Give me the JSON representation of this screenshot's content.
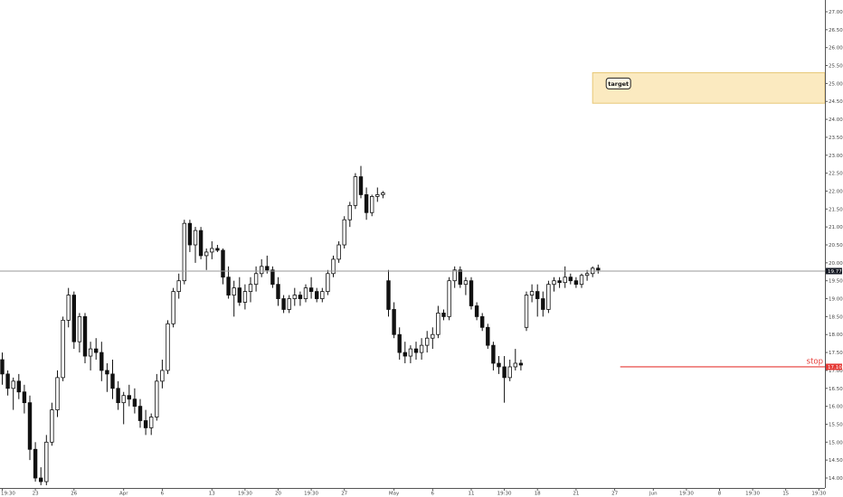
{
  "chart_data": {
    "type": "candlestick",
    "title": "",
    "xlabel": "",
    "ylabel": "",
    "grid": false,
    "ylim": [
      13.75,
      27.25
    ],
    "y_ticks": [
      14.0,
      14.5,
      15.0,
      15.5,
      16.0,
      16.5,
      17.0,
      17.5,
      18.0,
      18.5,
      19.0,
      19.5,
      20.0,
      20.5,
      21.0,
      21.5,
      22.0,
      22.5,
      23.0,
      23.5,
      24.0,
      24.5,
      25.0,
      25.5,
      26.0,
      26.5,
      27.0
    ],
    "x_ticks": [
      {
        "label": "19:30",
        "bar": 0
      },
      {
        "label": "23",
        "bar": 6
      },
      {
        "label": "26",
        "bar": 13
      },
      {
        "label": "Apr",
        "bar": 22
      },
      {
        "label": "6",
        "bar": 29
      },
      {
        "label": "13",
        "bar": 38
      },
      {
        "label": "19:30",
        "bar": 44
      },
      {
        "label": "20",
        "bar": 50
      },
      {
        "label": "19:30",
        "bar": 56
      },
      {
        "label": "27",
        "bar": 62
      },
      {
        "label": "May",
        "bar": 71
      },
      {
        "label": "6",
        "bar": 78
      },
      {
        "label": "11",
        "bar": 85
      },
      {
        "label": "19:30",
        "bar": 91
      },
      {
        "label": "18",
        "bar": 97
      },
      {
        "label": "21",
        "bar": 104
      },
      {
        "label": "27",
        "bar": 111
      },
      {
        "label": "Jun",
        "bar": 118
      },
      {
        "label": "19:30",
        "bar": 124
      },
      {
        "label": "8",
        "bar": 130
      },
      {
        "label": "19:30",
        "bar": 136
      },
      {
        "label": "15",
        "bar": 142
      },
      {
        "label": "19:30",
        "bar": 148
      },
      {
        "label": "19:30",
        "bar": 154
      }
    ],
    "price_line": {
      "value": 19.77,
      "label": "19.77"
    },
    "stop": {
      "value": 17.1,
      "label": "17.10",
      "text": "stop"
    },
    "target_zone": {
      "from_bar": 107,
      "to": 25.3,
      "bottom": 24.45,
      "text": "target"
    },
    "bar_count": 109,
    "candles": [
      [
        17.3,
        17.5,
        16.6,
        16.9
      ],
      [
        16.9,
        17.0,
        16.3,
        16.5
      ],
      [
        16.5,
        16.8,
        15.9,
        16.7
      ],
      [
        16.7,
        16.9,
        16.2,
        16.4
      ],
      [
        16.4,
        16.6,
        15.8,
        16.1
      ],
      [
        16.1,
        16.3,
        14.5,
        14.8
      ],
      [
        14.8,
        15.0,
        13.9,
        14.0
      ],
      [
        14.0,
        14.3,
        13.8,
        13.9
      ],
      [
        13.9,
        15.2,
        13.8,
        15.0
      ],
      [
        15.0,
        16.1,
        14.9,
        15.9
      ],
      [
        15.9,
        17.0,
        15.7,
        16.8
      ],
      [
        16.8,
        18.5,
        16.7,
        18.4
      ],
      [
        18.4,
        19.3,
        18.2,
        19.1
      ],
      [
        19.1,
        19.2,
        17.6,
        17.8
      ],
      [
        17.8,
        18.6,
        17.5,
        18.5
      ],
      [
        18.5,
        18.6,
        17.2,
        17.4
      ],
      [
        17.4,
        17.8,
        17.0,
        17.6
      ],
      [
        17.6,
        17.9,
        17.3,
        17.5
      ],
      [
        17.5,
        17.8,
        16.7,
        17.0
      ],
      [
        17.0,
        17.2,
        16.4,
        16.9
      ],
      [
        16.9,
        17.3,
        16.2,
        16.5
      ],
      [
        16.5,
        16.7,
        15.9,
        16.1
      ],
      [
        16.1,
        16.4,
        15.5,
        16.3
      ],
      [
        16.3,
        16.6,
        16.0,
        16.2
      ],
      [
        16.2,
        16.5,
        15.8,
        16.0
      ],
      [
        16.0,
        16.2,
        15.4,
        15.6
      ],
      [
        15.6,
        15.9,
        15.2,
        15.4
      ],
      [
        15.4,
        15.8,
        15.2,
        15.7
      ],
      [
        15.7,
        16.9,
        15.6,
        16.7
      ],
      [
        16.7,
        17.3,
        16.5,
        17.0
      ],
      [
        17.0,
        18.4,
        16.9,
        18.3
      ],
      [
        18.3,
        19.3,
        18.2,
        19.2
      ],
      [
        19.2,
        19.7,
        19.0,
        19.5
      ],
      [
        19.5,
        21.2,
        19.4,
        21.1
      ],
      [
        21.1,
        21.2,
        20.3,
        20.5
      ],
      [
        20.5,
        21.0,
        20.0,
        20.9
      ],
      [
        20.9,
        21.0,
        20.1,
        20.2
      ],
      [
        20.2,
        20.4,
        19.8,
        20.3
      ],
      [
        20.3,
        20.6,
        20.1,
        20.4
      ],
      [
        20.4,
        20.5,
        20.3,
        20.35
      ],
      [
        20.35,
        20.4,
        19.4,
        19.6
      ],
      [
        19.6,
        19.9,
        19.0,
        19.1
      ],
      [
        19.1,
        19.5,
        18.5,
        19.3
      ],
      [
        19.3,
        19.6,
        18.8,
        18.9
      ],
      [
        18.9,
        19.4,
        18.7,
        19.2
      ],
      [
        19.2,
        19.6,
        18.9,
        19.4
      ],
      [
        19.4,
        19.9,
        19.2,
        19.7
      ],
      [
        19.7,
        20.1,
        19.6,
        19.9
      ],
      [
        19.9,
        20.2,
        19.7,
        19.8
      ],
      [
        19.8,
        19.9,
        19.3,
        19.4
      ],
      [
        19.4,
        19.6,
        18.8,
        19.0
      ],
      [
        19.0,
        19.1,
        18.6,
        18.7
      ],
      [
        18.7,
        19.1,
        18.6,
        19.0
      ],
      [
        19.0,
        19.3,
        18.8,
        19.1
      ],
      [
        19.1,
        19.2,
        18.8,
        19.0
      ],
      [
        19.0,
        19.4,
        18.9,
        19.3
      ],
      [
        19.3,
        19.6,
        19.0,
        19.2
      ],
      [
        19.2,
        19.3,
        18.9,
        19.0
      ],
      [
        19.0,
        19.3,
        18.9,
        19.2
      ],
      [
        19.2,
        19.8,
        19.1,
        19.7
      ],
      [
        19.7,
        20.2,
        19.6,
        20.1
      ],
      [
        20.1,
        20.6,
        20.0,
        20.5
      ],
      [
        20.5,
        21.3,
        20.4,
        21.2
      ],
      [
        21.2,
        21.7,
        21.0,
        21.6
      ],
      [
        21.6,
        22.5,
        21.5,
        22.4
      ],
      [
        22.4,
        22.7,
        21.8,
        21.9
      ],
      [
        21.9,
        22.1,
        21.2,
        21.4
      ],
      [
        21.4,
        21.9,
        21.3,
        21.85
      ],
      [
        21.85,
        22.1,
        21.7,
        21.9
      ],
      [
        21.9,
        22.0,
        21.8,
        21.95
      ],
      [
        19.5,
        19.8,
        18.5,
        18.7
      ],
      [
        18.7,
        18.9,
        17.9,
        18.0
      ],
      [
        18.0,
        18.2,
        17.3,
        17.5
      ],
      [
        17.5,
        17.8,
        17.2,
        17.4
      ],
      [
        17.4,
        17.7,
        17.2,
        17.6
      ],
      [
        17.6,
        17.8,
        17.3,
        17.5
      ],
      [
        17.5,
        17.9,
        17.3,
        17.7
      ],
      [
        17.7,
        18.1,
        17.5,
        17.9
      ],
      [
        17.9,
        18.2,
        17.6,
        18.0
      ],
      [
        18.0,
        18.8,
        17.9,
        18.6
      ],
      [
        18.6,
        18.7,
        18.4,
        18.5
      ],
      [
        18.5,
        19.6,
        18.4,
        19.5
      ],
      [
        19.5,
        19.9,
        19.3,
        19.8
      ],
      [
        19.8,
        19.9,
        19.3,
        19.4
      ],
      [
        19.4,
        19.6,
        19.1,
        19.5
      ],
      [
        19.5,
        19.6,
        18.7,
        18.8
      ],
      [
        18.8,
        18.9,
        18.4,
        18.5
      ],
      [
        18.5,
        18.6,
        18.1,
        18.2
      ],
      [
        18.2,
        18.3,
        17.6,
        17.7
      ],
      [
        17.7,
        17.8,
        17.0,
        17.2
      ],
      [
        17.2,
        17.4,
        16.9,
        17.1
      ],
      [
        17.1,
        17.4,
        16.1,
        16.8
      ],
      [
        16.8,
        17.3,
        16.7,
        17.1
      ],
      [
        17.1,
        17.6,
        17.0,
        17.2
      ],
      [
        17.2,
        17.3,
        17.0,
        17.15
      ],
      [
        18.2,
        19.2,
        18.1,
        19.1
      ],
      [
        19.1,
        19.4,
        18.9,
        19.2
      ],
      [
        19.2,
        19.4,
        18.5,
        19.0
      ],
      [
        19.0,
        19.2,
        18.5,
        18.7
      ],
      [
        18.7,
        19.5,
        18.6,
        19.4
      ],
      [
        19.4,
        19.6,
        19.2,
        19.5
      ],
      [
        19.5,
        19.6,
        19.3,
        19.45
      ],
      [
        19.45,
        19.9,
        19.3,
        19.6
      ],
      [
        19.6,
        19.7,
        19.4,
        19.5
      ],
      [
        19.5,
        19.6,
        19.3,
        19.4
      ],
      [
        19.4,
        19.7,
        19.3,
        19.65
      ],
      [
        19.65,
        19.8,
        19.5,
        19.7
      ],
      [
        19.7,
        19.9,
        19.6,
        19.85
      ],
      [
        19.85,
        19.95,
        19.7,
        19.8
      ]
    ]
  }
}
